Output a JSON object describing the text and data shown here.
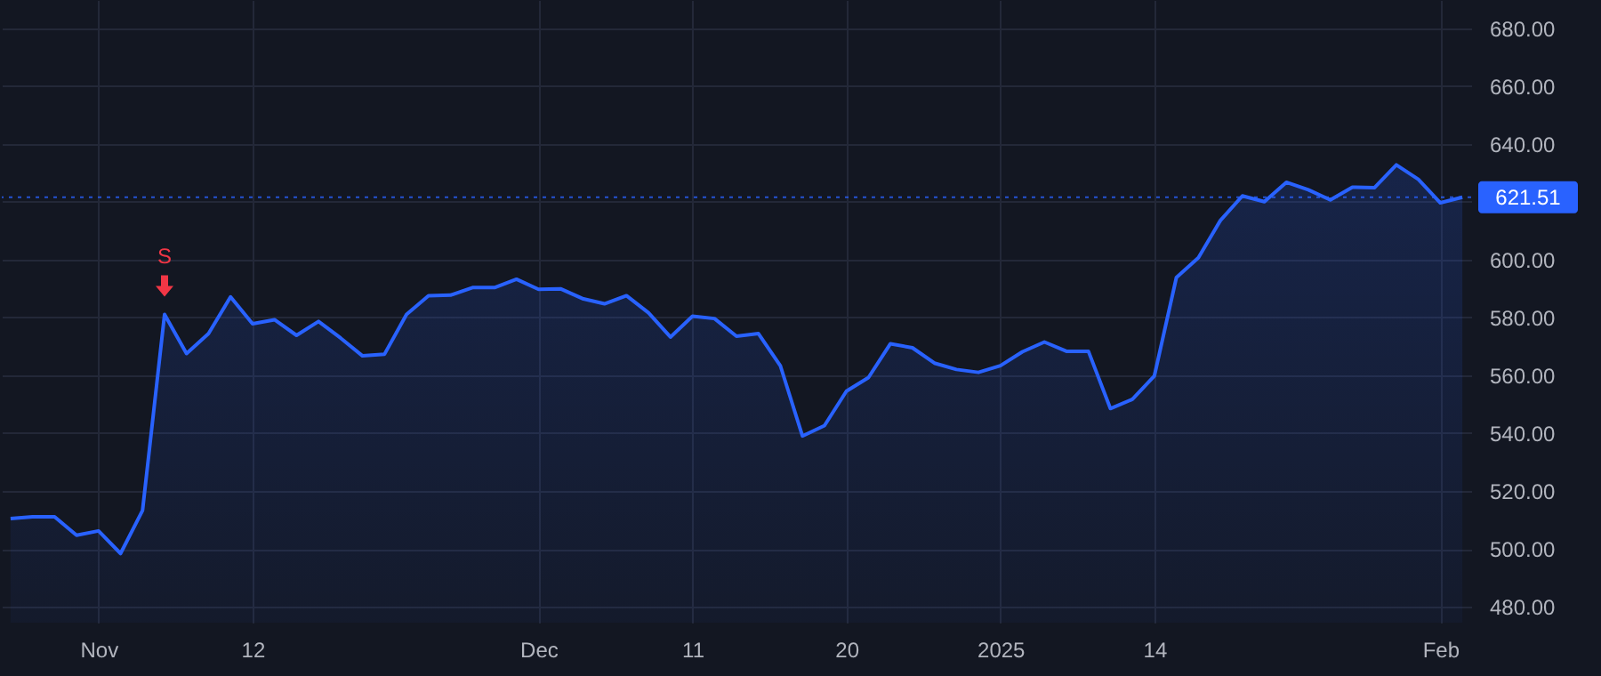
{
  "chart_data": {
    "type": "area",
    "categories": [
      null,
      null,
      null,
      null,
      "Nov",
      null,
      null,
      null,
      null,
      null,
      null,
      "12",
      null,
      null,
      null,
      null,
      null,
      null,
      null,
      null,
      null,
      null,
      null,
      null,
      "Dec",
      null,
      null,
      null,
      null,
      null,
      null,
      "11",
      null,
      null,
      null,
      null,
      null,
      null,
      "20",
      null,
      null,
      null,
      null,
      null,
      null,
      "2025",
      null,
      null,
      null,
      null,
      null,
      null,
      "14",
      null,
      null,
      null,
      null,
      null,
      null,
      null,
      null,
      null,
      null,
      null,
      null,
      "Feb",
      null
    ],
    "series": [
      {
        "color": "#2962ff",
        "values": [
          510.5,
          511.1,
          511.1,
          504.7,
          506.2,
          498.4,
          513.3,
          581.0,
          567.5,
          574.4,
          587.1,
          577.8,
          579.2,
          573.8,
          578.6,
          572.9,
          566.7,
          567.3,
          581.0,
          587.5,
          587.7,
          590.3,
          590.3,
          593.2,
          589.7,
          589.9,
          586.5,
          584.7,
          587.5,
          581.6,
          573.2,
          580.4,
          579.6,
          573.5,
          574.4,
          563.2,
          539.0,
          542.6,
          554.5,
          559.2,
          570.9,
          569.5,
          564.2,
          562.0,
          561.0,
          563.3,
          568.1,
          571.5,
          568.3,
          568.3,
          548.5,
          551.7,
          559.8,
          593.8,
          600.6,
          613.5,
          622.0,
          620.0,
          626.7,
          624.1,
          620.6,
          625.0,
          624.8,
          632.7,
          627.7,
          619.6,
          621.51
        ]
      }
    ],
    "ylim": [
      474.5,
      689.7
    ],
    "yticks": [
      {
        "value": 480,
        "label": "480.00"
      },
      {
        "value": 500,
        "label": "500.00"
      },
      {
        "value": 520,
        "label": "520.00"
      },
      {
        "value": 540,
        "label": "540.00"
      },
      {
        "value": 560,
        "label": "560.00"
      },
      {
        "value": 580,
        "label": "580.00"
      },
      {
        "value": 600,
        "label": "600.00"
      },
      {
        "value": 620,
        "label": null
      },
      {
        "value": 640,
        "label": "640.00"
      },
      {
        "value": 660,
        "label": "660.00"
      },
      {
        "value": 680,
        "label": "680.00"
      }
    ],
    "grid": true,
    "ref_lines": [
      {
        "axis": "y",
        "value": 621.51,
        "label": "621.51",
        "color": "#2962ff",
        "line_style": "dotted"
      }
    ],
    "annotations": [
      {
        "text": "S",
        "y": 581.0
      }
    ]
  }
}
